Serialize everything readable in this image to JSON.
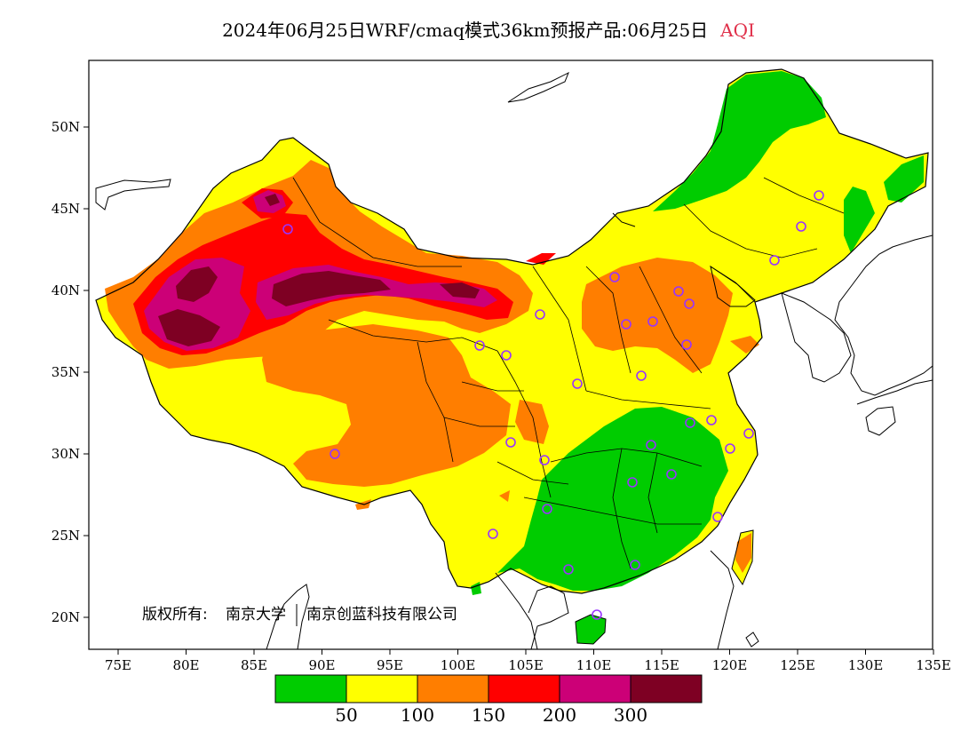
{
  "title": {
    "main": "2024年06月25日WRF/cmaq模式36km预报产品:06月25日",
    "variable": "AQI",
    "variable_color": "#e0304a"
  },
  "axes": {
    "x_ticks": [
      "75E",
      "80E",
      "85E",
      "90E",
      "95E",
      "100E",
      "105E",
      "110E",
      "115E",
      "120E",
      "125E",
      "130E",
      "135E"
    ],
    "y_ticks": [
      "50N",
      "45N",
      "40N",
      "35N",
      "30N",
      "25N",
      "20N"
    ]
  },
  "copyright": {
    "owner_label": "版权所有:",
    "org1": "南京大学",
    "org2": "南京创蓝科技有限公司"
  },
  "legend": {
    "colors": [
      "#00cc00",
      "#ffff00",
      "#ff7e00",
      "#ff0000",
      "#cc0077",
      "#7e0023"
    ],
    "thresholds": [
      "50",
      "100",
      "150",
      "200",
      "300"
    ]
  },
  "palette": {
    "good": "#00cc00",
    "moderate": "#ffff00",
    "unhealthy_sensitive": "#ff7e00",
    "unhealthy": "#ff0000",
    "very_unhealthy": "#cc0077",
    "hazardous": "#7e0023",
    "station_marker": "#9933ff"
  },
  "map": {
    "station_count": 30
  }
}
